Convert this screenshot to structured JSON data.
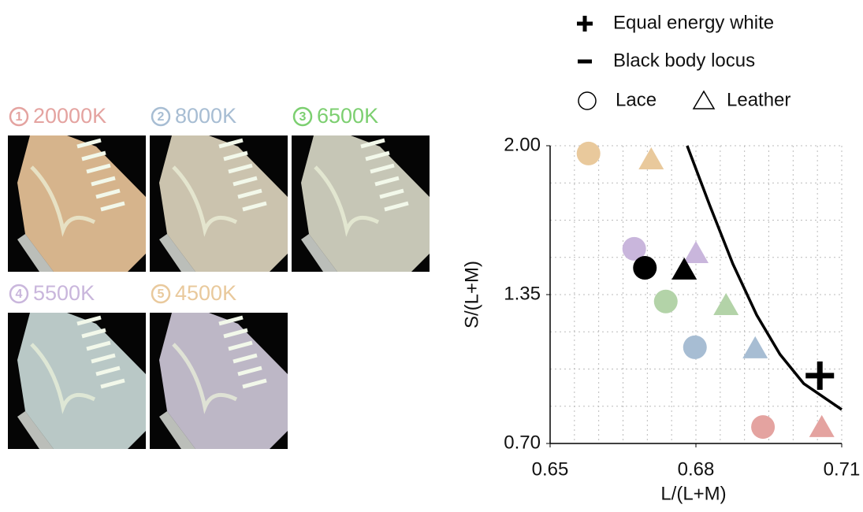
{
  "panels": [
    {
      "number": "1",
      "label": "20000K",
      "color": "#e4a3a0",
      "tint": "#d6b48c"
    },
    {
      "number": "2",
      "label": "8000K",
      "color": "#a7bdd3",
      "tint": "#cbc3ae"
    },
    {
      "number": "3",
      "label": "6500K",
      "color": "#7ccf70",
      "tint": "#c6c6b6"
    },
    {
      "number": "4",
      "label": "5500K",
      "color": "#c9b6dc",
      "tint": "#b9c8c6"
    },
    {
      "number": "5",
      "label": "4500K",
      "color": "#e9c99c",
      "tint": "#bdb7c6"
    }
  ],
  "chart_data": {
    "type": "scatter",
    "x_label": "L/(L+M)",
    "y_label": "S/(L+M)",
    "xlim": [
      0.65,
      0.71
    ],
    "xticks": [
      0.65,
      0.68,
      0.71
    ],
    "ylim": [
      0.7,
      2.0
    ],
    "yticks": [
      {
        "value": 0.7,
        "label": "0.70"
      },
      1.35,
      {
        "value": 2.0,
        "label": "2.00"
      }
    ],
    "grid": true,
    "xgrid_step": 0.005,
    "ygrid_step": 0.1625,
    "series": [
      {
        "name": "Lace",
        "marker": "circle",
        "x": [
          0.6579,
          0.6673,
          0.6695,
          0.6738,
          0.6798,
          0.6938
        ],
        "values": [
          1.966,
          1.55,
          1.467,
          1.32,
          1.12,
          0.772
        ],
        "colors": [
          "#e9c99c",
          "#c9b6dc",
          "#000000",
          "#b3d3a8",
          "#a7bdd3",
          "#e4a3a0"
        ]
      },
      {
        "name": "Leather",
        "marker": "triangle",
        "x": [
          0.6708,
          0.68,
          0.6776,
          0.6862,
          0.6922,
          0.7059
        ],
        "values": [
          1.938,
          1.529,
          1.457,
          1.302,
          1.113,
          0.769
        ],
        "colors": [
          "#e9c99c",
          "#c9b6dc",
          "#000000",
          "#b3d3a8",
          "#a7bdd3",
          "#e4a3a0"
        ]
      },
      {
        "name": "Equal energy white",
        "marker": "cross",
        "x": [
          0.7055
        ],
        "values": [
          0.996
        ],
        "colors": [
          "#000000"
        ]
      },
      {
        "name": "Black body locus",
        "marker": "line",
        "color": "#000000",
        "x": [
          0.6782,
          0.6828,
          0.6876,
          0.6925,
          0.6973,
          0.7022,
          0.71
        ],
        "values": [
          2.0,
          1.742,
          1.484,
          1.261,
          1.089,
          0.961,
          0.848
        ]
      }
    ],
    "legend_order": [
      2,
      3,
      0,
      1
    ]
  }
}
